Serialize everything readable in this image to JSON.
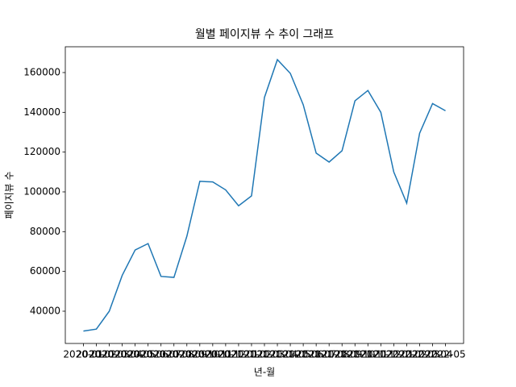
{
  "chart_data": {
    "type": "line",
    "title": "월별 페이지뷰 수 추이 그래프",
    "x_label": "년-월",
    "y_label": "페이지뷰 수",
    "categories": [
      "2020-01",
      "2020-02",
      "2020-03",
      "2020-04",
      "2020-05",
      "2020-06",
      "2020-07",
      "2020-08",
      "2020-09",
      "2020-10",
      "2020-11",
      "2020-12",
      "2021-01",
      "2021-02",
      "2021-03",
      "2021-04",
      "2021-05",
      "2021-06",
      "2021-07",
      "2021-08",
      "2021-09",
      "2021-10",
      "2021-11",
      "2021-12",
      "2022-01",
      "2022-02",
      "2022-03",
      "2022-04",
      "2022-05"
    ],
    "values": [
      30000,
      31000,
      40000,
      58000,
      70800,
      74000,
      57500,
      57000,
      77700,
      105300,
      105000,
      101000,
      93000,
      98000,
      147500,
      166500,
      159600,
      143800,
      119500,
      115000,
      120700,
      145800,
      151000,
      140000,
      110000,
      94300,
      129500,
      144400,
      140800
    ],
    "color": "#1f77b4",
    "ylim": [
      23780,
      172970
    ],
    "yticks": [
      40000,
      60000,
      80000,
      100000,
      120000,
      140000,
      160000
    ],
    "grid": false
  }
}
